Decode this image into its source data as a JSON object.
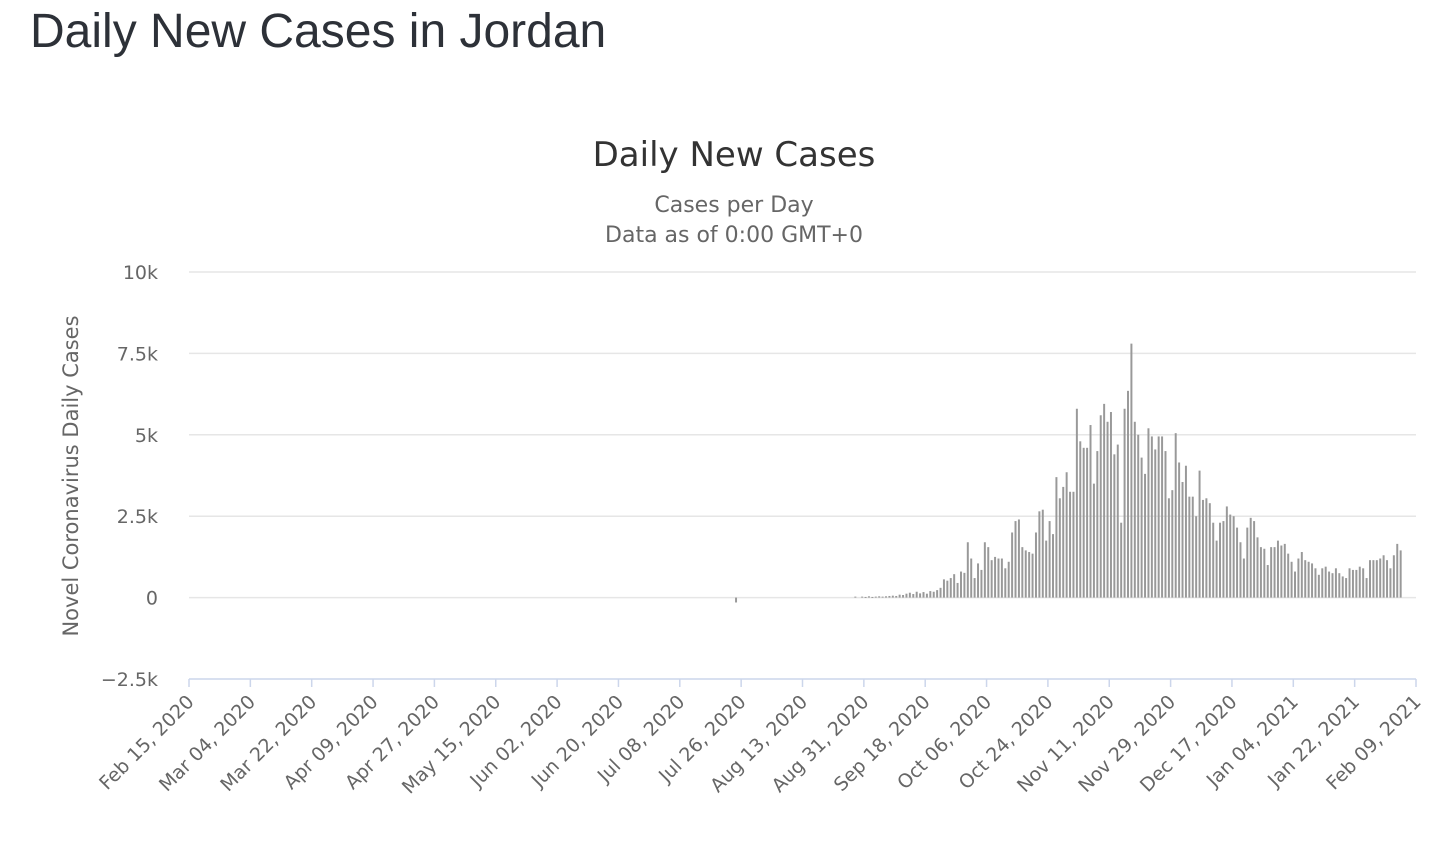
{
  "page": {
    "title": "Daily New Cases in Jordan"
  },
  "chart_data": {
    "type": "bar",
    "title": "Daily New Cases",
    "subtitle_lines": [
      "Cases per Day",
      "Data as of 0:00 GMT+0"
    ],
    "ylabel": "Novel Coronavirus Daily Cases",
    "xlabel": "",
    "ylim": [
      -2500,
      10000
    ],
    "y_ticks": [
      -2500,
      0,
      2500,
      5000,
      7500,
      10000
    ],
    "y_tick_labels": [
      "−2.5k",
      "0",
      "2.5k",
      "5k",
      "7.5k",
      "10k"
    ],
    "x_tick_labels": [
      "Feb 15, 2020",
      "Mar 04, 2020",
      "Mar 22, 2020",
      "Apr 09, 2020",
      "Apr 27, 2020",
      "May 15, 2020",
      "Jun 02, 2020",
      "Jun 20, 2020",
      "Jul 08, 2020",
      "Jul 26, 2020",
      "Aug 13, 2020",
      "Aug 31, 2020",
      "Sep 18, 2020",
      "Oct 06, 2020",
      "Oct 24, 2020",
      "Nov 11, 2020",
      "Nov 29, 2020",
      "Dec 17, 2020",
      "Jan 04, 2021",
      "Jan 22, 2021",
      "Feb 09, 2021"
    ],
    "grid": true,
    "legend": "none",
    "bar_color": "#999999",
    "series": [
      {
        "start_date": "2020-08-28",
        "values": [
          30,
          0,
          30,
          20,
          40,
          20,
          30,
          40,
          30,
          40,
          50,
          60,
          50,
          90,
          80,
          120,
          150,
          110,
          180,
          130,
          170,
          120,
          200,
          180,
          230,
          300,
          560,
          520,
          600,
          720,
          450,
          800,
          760,
          1700,
          1200,
          600,
          1050,
          850,
          1700,
          1550,
          1150,
          1250,
          1200,
          1200,
          900,
          1100,
          2000,
          2350,
          2400,
          1550,
          1450,
          1400,
          1350,
          2000,
          2650,
          2700,
          1750,
          2350,
          1950,
          3700,
          3050,
          3400,
          3850,
          3250,
          3250,
          5800,
          4800,
          4600,
          4600,
          5300,
          3500,
          4500,
          5600,
          5950,
          5400,
          5700,
          4400,
          4700,
          2300,
          5800,
          6350,
          7800,
          5400,
          5000,
          4300,
          3800,
          5200,
          4950,
          4550,
          4950,
          4950,
          4500,
          3050,
          3300,
          5050,
          4150,
          3550,
          4050,
          3100,
          3100,
          2500,
          3900,
          3000,
          3050,
          2900,
          2300,
          1750,
          2300,
          2350,
          2800,
          2550,
          2500,
          2150,
          1700,
          1200,
          2150,
          2450,
          2350,
          1850,
          1550,
          1500,
          1000,
          1550,
          1550,
          1750,
          1600,
          1650,
          1350,
          1100,
          800,
          1200,
          1400,
          1150,
          1100,
          1050,
          900,
          700,
          900,
          950,
          800,
          750,
          900,
          750,
          650,
          600,
          900,
          850,
          850,
          950,
          900,
          600,
          1150,
          1150,
          1150,
          1200,
          1300,
          1150,
          900,
          1300,
          1650,
          1450
        ]
      }
    ],
    "outliers": [
      {
        "date": "2020-07-24",
        "value": -150
      }
    ]
  }
}
